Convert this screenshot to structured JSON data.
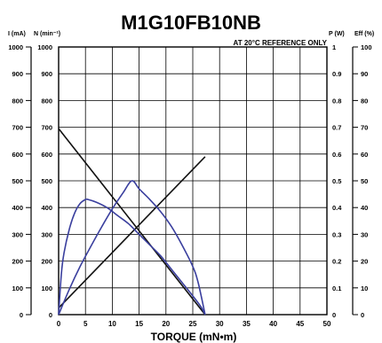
{
  "chart_data": {
    "type": "line",
    "title": "M1G10FB10NB",
    "note": "AT 20°C REFERENCE ONLY",
    "xlabel": "TORQUE (mN•m)",
    "xlim": [
      0,
      50
    ],
    "xticks": [
      0,
      5,
      10,
      15,
      20,
      25,
      30,
      35,
      40,
      45,
      50
    ],
    "left_axes": [
      {
        "label": "I (mA)",
        "range": [
          0,
          1000
        ]
      },
      {
        "label": "N (min⁻¹)",
        "range": [
          0,
          1000
        ]
      }
    ],
    "right_axes": [
      {
        "label": "P (W)",
        "range": [
          0,
          1
        ],
        "ticks": [
          0,
          0.1,
          0.2,
          0.3,
          0.4,
          0.5,
          0.6,
          0.7,
          0.8,
          0.9,
          1
        ]
      },
      {
        "label": "Eff (%)",
        "range": [
          0,
          100
        ],
        "ticks": [
          0,
          10,
          20,
          30,
          40,
          50,
          60,
          70,
          80,
          90,
          100
        ]
      }
    ],
    "left_ticks": [
      0,
      100,
      200,
      300,
      400,
      500,
      600,
      700,
      800,
      900,
      1000
    ],
    "grid": true,
    "series": [
      {
        "key": "speed",
        "color": "#111111",
        "axis": "N",
        "x": [
          0,
          27.3
        ],
        "y": [
          695,
          0
        ]
      },
      {
        "key": "current",
        "color": "#111111",
        "axis": "I",
        "x": [
          0,
          27.3
        ],
        "y": [
          25,
          590
        ]
      },
      {
        "key": "power",
        "color": "#3a3f9e",
        "axis": "P",
        "x": [
          0,
          2,
          4,
          6,
          8,
          10,
          12,
          13.65,
          15,
          17,
          19,
          21,
          23,
          25,
          26,
          27.3
        ],
        "y": [
          0,
          0.095,
          0.18,
          0.255,
          0.327,
          0.395,
          0.455,
          0.5,
          0.47,
          0.43,
          0.385,
          0.33,
          0.26,
          0.18,
          0.12,
          0
        ]
      },
      {
        "key": "efficiency",
        "color": "#3a3f9e",
        "axis": "Eff",
        "x": [
          0,
          0.5,
          1,
          2,
          3,
          4,
          5,
          5.5,
          7,
          9,
          11,
          13,
          15,
          17,
          19,
          21,
          23,
          25,
          26.5,
          27.3
        ],
        "y": [
          0,
          15,
          23,
          32,
          38,
          41.5,
          43,
          43,
          42,
          40,
          37,
          34,
          30,
          26,
          22,
          17,
          12,
          7,
          3,
          0
        ]
      }
    ]
  }
}
